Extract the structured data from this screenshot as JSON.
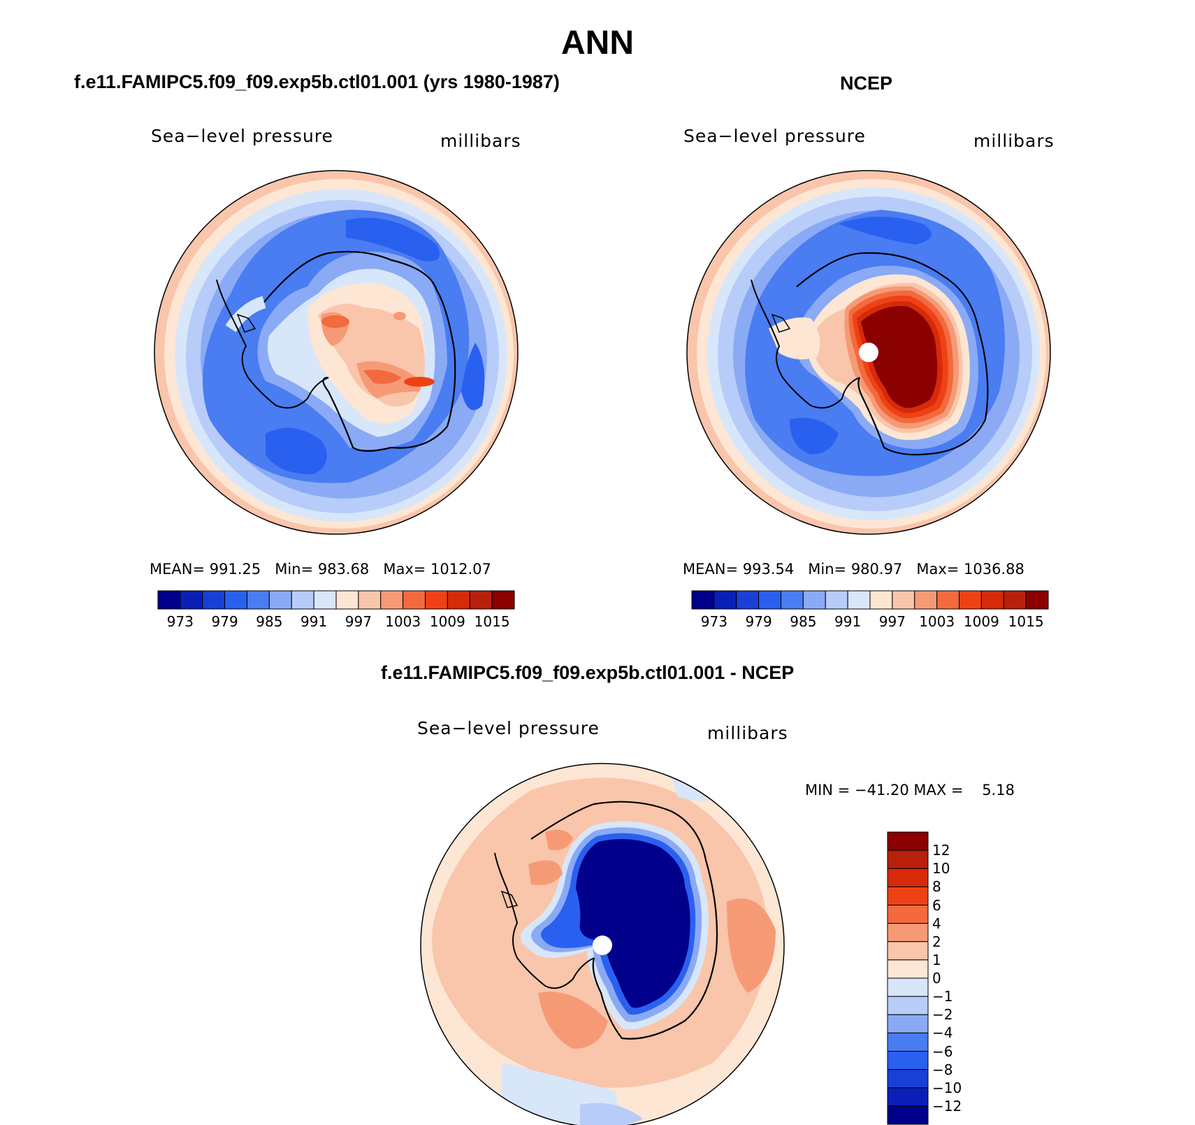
{
  "title": "ANN",
  "panels": [
    {
      "title": "f.e11.FAMIPC5.f09_f09.exp5b.ctl01.001 (yrs 1980-1987)",
      "variable": "Sea−level pressure",
      "units": "millibars",
      "stats": {
        "mean_label": "MEAN=",
        "mean": "991.25",
        "min_label": "Min=",
        "min": "983.68",
        "max_label": "Max=",
        "max": "1012.07"
      }
    },
    {
      "title": "NCEP",
      "variable": "Sea−level pressure",
      "units": "millibars",
      "stats": {
        "mean_label": "MEAN=",
        "mean": "993.54",
        "min_label": "Min=",
        "min": "980.97",
        "max_label": "Max=",
        "max": "1036.88"
      }
    }
  ],
  "diff_panel": {
    "title": "f.e11.FAMIPC5.f09_f09.exp5b.ctl01.001 - NCEP",
    "variable": "Sea−level pressure",
    "units": "millibars",
    "stats": "MIN = −41.20 MAX =    5.18"
  },
  "colorbar_abs": {
    "colors": [
      "#00008b",
      "#0a1fb8",
      "#1a3fd6",
      "#2a60f0",
      "#4a7cf2",
      "#8aaaf5",
      "#b7ccf8",
      "#d8e6fa",
      "#fde6d3",
      "#f9c5ab",
      "#f69a76",
      "#f26a3e",
      "#ee4216",
      "#d72a0a",
      "#b8200c",
      "#8b0000"
    ],
    "labels": [
      "973",
      "979",
      "985",
      "991",
      "997",
      "1003",
      "1009",
      "1015"
    ]
  },
  "colorbar_diff": {
    "colors": [
      "#8b0000",
      "#b8200c",
      "#d72a0a",
      "#ee4216",
      "#f26a3e",
      "#f69a76",
      "#f9c5ab",
      "#fde6d3",
      "#d8e6fa",
      "#b7ccf8",
      "#8aaaf5",
      "#4a7cf2",
      "#2a60f0",
      "#1a3fd6",
      "#0a1fb8",
      "#00008b"
    ],
    "labels": [
      "12",
      "10",
      "8",
      "6",
      "4",
      "2",
      "1",
      "0",
      "−1",
      "−2",
      "−4",
      "−6",
      "−8",
      "−10",
      "−12"
    ]
  }
}
